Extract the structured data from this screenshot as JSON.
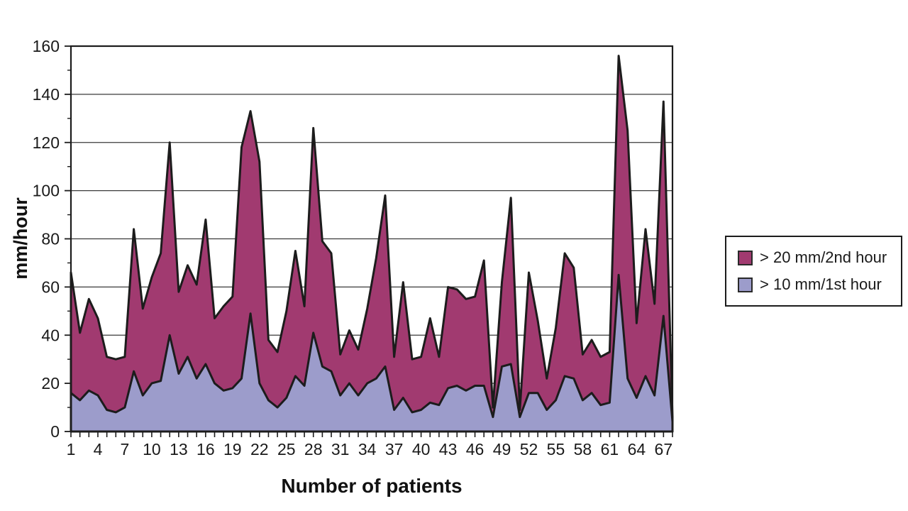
{
  "chart_data": {
    "type": "area",
    "mode": "overlapping",
    "title": "",
    "xlabel": "Number of patients",
    "ylabel": "mm/hour",
    "ylim": [
      0,
      160
    ],
    "y_ticks": [
      0,
      20,
      40,
      60,
      80,
      100,
      120,
      140,
      160
    ],
    "y_minor_tick_step": 10,
    "x_tick_labels": [
      "1",
      "4",
      "7",
      "10",
      "13",
      "16",
      "19",
      "22",
      "25",
      "28",
      "31",
      "34",
      "37",
      "40",
      "43",
      "46",
      "49",
      "52",
      "55",
      "58",
      "61",
      "64",
      "67"
    ],
    "x_tick_label_interval": 3,
    "n_points": 68,
    "grid": true,
    "grid_color": "#3a3a3a",
    "outline_color": "#1c1c1c",
    "frame_color": "#1c1c1c",
    "legend_position": "right",
    "series": [
      {
        "name": "> 20 mm/2nd hour",
        "color": "#A13A70",
        "values": [
          66,
          41,
          55,
          47,
          31,
          30,
          31,
          84,
          51,
          64,
          74,
          120,
          58,
          69,
          61,
          88,
          47,
          52,
          56,
          118,
          133,
          112,
          38,
          33,
          50,
          75,
          52,
          126,
          79,
          74,
          32,
          42,
          34,
          51,
          72,
          98,
          31,
          62,
          30,
          31,
          47,
          31,
          60,
          59,
          55,
          56,
          71,
          10,
          62,
          97,
          9,
          66,
          46,
          22,
          43,
          74,
          68,
          32,
          38,
          31,
          33,
          156,
          125,
          45,
          84,
          53,
          137,
          6
        ]
      },
      {
        "name": "> 10 mm/1st hour",
        "color": "#9C9CCB",
        "values": [
          16,
          13,
          17,
          15,
          9,
          8,
          10,
          25,
          15,
          20,
          21,
          40,
          24,
          31,
          22,
          28,
          20,
          17,
          18,
          22,
          49,
          20,
          13,
          10,
          14,
          23,
          19,
          41,
          27,
          25,
          15,
          20,
          15,
          20,
          22,
          27,
          9,
          14,
          8,
          9,
          12,
          11,
          18,
          19,
          17,
          19,
          19,
          6,
          27,
          28,
          6,
          16,
          16,
          9,
          13,
          23,
          22,
          13,
          16,
          11,
          12,
          65,
          22,
          14,
          23,
          15,
          48,
          4
        ]
      }
    ]
  },
  "legend": {
    "items": [
      {
        "label": "> 20 mm/2nd hour",
        "color": "#A13A70"
      },
      {
        "label": "> 10 mm/1st hour",
        "color": "#9C9CCB"
      }
    ]
  }
}
